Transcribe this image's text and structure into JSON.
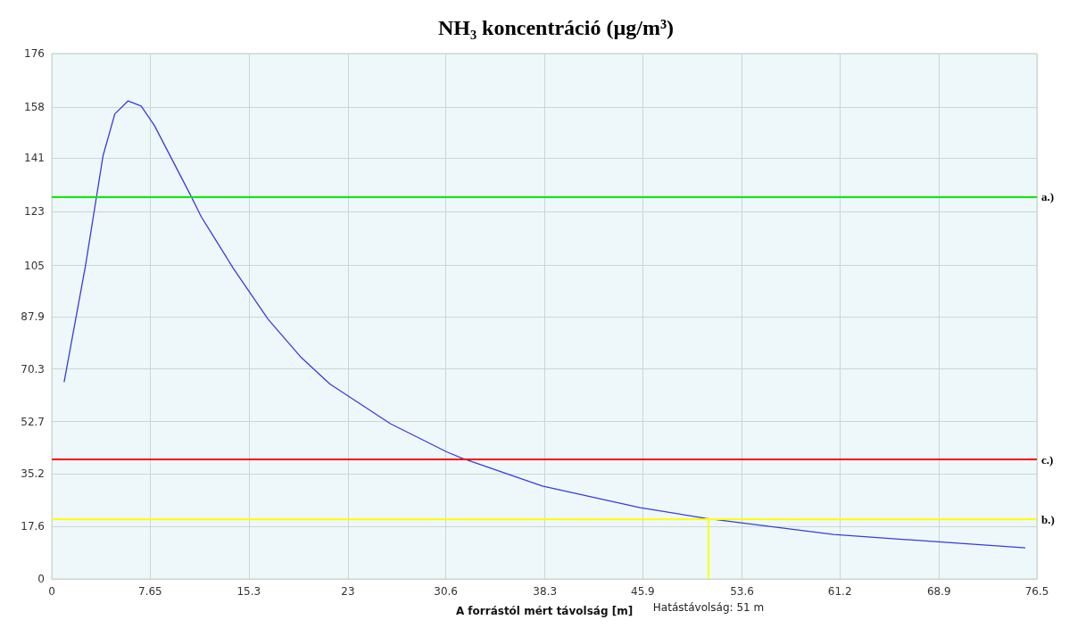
{
  "chart_data": {
    "type": "line",
    "title": "NH₃ koncentráció (µg/m³)",
    "xlabel": "A forrástól mért távolság [m]",
    "series": [
      {
        "color": "#3a3ae0",
        "x": [
          0.96,
          2.62,
          3.98,
          4.9,
          5.92,
          6.94,
          7.97,
          10.7,
          11.6,
          14.1,
          16.8,
          19.3,
          21.6,
          26.3,
          30.7,
          31.9,
          38.1,
          45.7,
          50.8,
          60.7,
          68.6,
          75.6
        ],
        "values": [
          65.9,
          104.9,
          141.7,
          155.8,
          160.1,
          158.4,
          151.9,
          129.2,
          121.4,
          104,
          87,
          74.5,
          65.3,
          52,
          42.5,
          40.4,
          31.1,
          23.9,
          20.3,
          14.9,
          12.5,
          10.4
        ]
      }
    ],
    "xlim": [
      0,
      76.5
    ],
    "xticks": [
      0,
      7.65,
      15.3,
      23,
      30.6,
      38.3,
      45.9,
      53.6,
      61.2,
      68.9,
      76.5
    ],
    "ylim": [
      0,
      176
    ],
    "yticks": [
      0,
      17.6,
      35.2,
      52.7,
      70.3,
      87.9,
      105,
      123,
      141,
      158,
      176
    ],
    "grid": true,
    "marker": "none",
    "line_style": "solid",
    "ref_lines": [
      {
        "axis": "y",
        "value": 128,
        "label": "a.)",
        "color": "#00ee00"
      },
      {
        "axis": "y",
        "value": 40,
        "label": "c.)",
        "color": "#ff0000"
      },
      {
        "axis": "y",
        "value": 20,
        "label": "b.)",
        "color": "#ffff00"
      },
      {
        "axis": "x",
        "value": 51,
        "label": "Hatástávolság: 51 m",
        "color": "#ffff00"
      }
    ]
  }
}
